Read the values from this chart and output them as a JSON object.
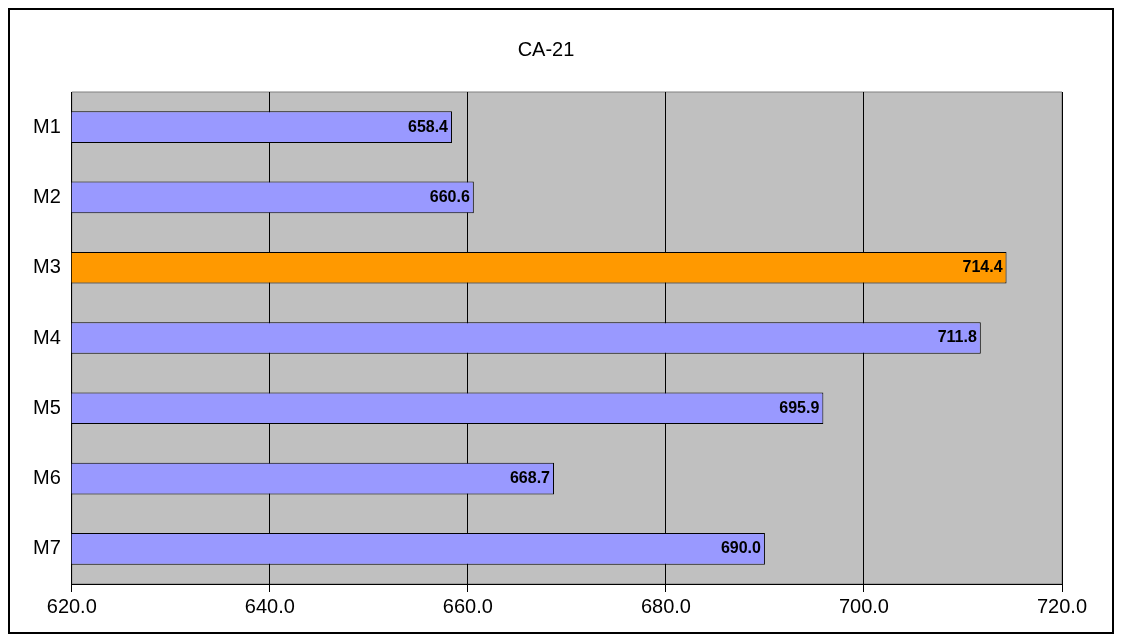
{
  "chart_data": {
    "type": "bar",
    "title": "CA-21",
    "orientation": "horizontal",
    "categories": [
      "M1",
      "M2",
      "M3",
      "M4",
      "M5",
      "M6",
      "M7"
    ],
    "values": [
      658.4,
      660.6,
      714.4,
      711.8,
      695.9,
      668.7,
      690.0
    ],
    "value_labels": [
      "658.4",
      "660.6",
      "714.4",
      "711.8",
      "695.9",
      "668.7",
      "690.0"
    ],
    "colors": [
      "#9999ff",
      "#9999ff",
      "#ff9900",
      "#9999ff",
      "#9999ff",
      "#9999ff",
      "#9999ff"
    ],
    "xlim": [
      620,
      720
    ],
    "xticks": [
      {
        "value": 620,
        "label": "620.0"
      },
      {
        "value": 640,
        "label": "640.0"
      },
      {
        "value": 660,
        "label": "660.0"
      },
      {
        "value": 680,
        "label": "680.0"
      },
      {
        "value": 700,
        "label": "700.0"
      },
      {
        "value": 720,
        "label": "720.0"
      }
    ],
    "grid": "x",
    "legend": false
  }
}
